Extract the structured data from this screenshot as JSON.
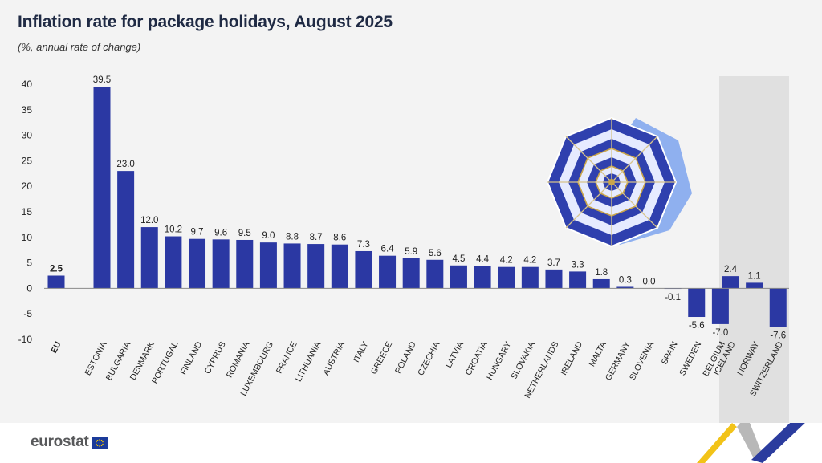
{
  "chart_data": {
    "type": "bar",
    "title": "Inflation rate for package holidays, August 2025",
    "subtitle": "(%, annual rate of change)",
    "ylim": [
      -10,
      40
    ],
    "yticks": [
      40,
      35,
      30,
      25,
      20,
      15,
      10,
      5,
      0,
      -5,
      -10
    ],
    "grid": false,
    "groups": [
      {
        "name": "eu",
        "categories": [
          "EU"
        ],
        "values": [
          2.5
        ],
        "labels": [
          "2.5"
        ],
        "shaded": false
      },
      {
        "name": "member-states",
        "categories": [
          "ESTONIA",
          "BULGARIA",
          "DENMARK",
          "PORTUGAL",
          "FINLAND",
          "CYPRUS",
          "ROMANIA",
          "LUXEMBOURG",
          "FRANCE",
          "LITHUANIA",
          "AUSTRIA",
          "ITALY",
          "GREECE",
          "POLAND",
          "CZECHIA",
          "LATVIA",
          "CROATIA",
          "HUNGARY",
          "SLOVAKIA",
          "NETHERLANDS",
          "IRELAND",
          "MALTA",
          "GERMANY",
          "SLOVENIA",
          "SPAIN",
          "SWEDEN",
          "BELGIUM"
        ],
        "values": [
          39.5,
          23.0,
          12.0,
          10.2,
          9.7,
          9.6,
          9.5,
          9.0,
          8.8,
          8.7,
          8.6,
          7.3,
          6.4,
          5.9,
          5.6,
          4.5,
          4.4,
          4.2,
          4.2,
          3.7,
          3.3,
          1.8,
          0.3,
          0.0,
          -0.1,
          -5.6,
          -7.0
        ],
        "labels": [
          "39.5",
          "23.0",
          "12.0",
          "10.2",
          "9.7",
          "9.6",
          "9.5",
          "9.0",
          "8.8",
          "8.7",
          "8.6",
          "7.3",
          "6.4",
          "5.9",
          "5.6",
          "4.5",
          "4.4",
          "4.2",
          "4.2",
          "3.7",
          "3.3",
          "1.8",
          "0.3",
          "0.0",
          "-0.1",
          "-5.6",
          "-7.0"
        ],
        "shaded": false
      },
      {
        "name": "efta",
        "categories": [
          "ICELAND",
          "NORWAY",
          "SWITZERLAND"
        ],
        "values": [
          2.4,
          1.1,
          -7.6
        ],
        "labels": [
          "2.4",
          "1.1",
          "-7.6"
        ],
        "shaded": true
      }
    ],
    "colors": {
      "bar": "#2b38a3",
      "panel": "#f3f3f3",
      "shade": "#e0e0e0",
      "axis": "#888888"
    }
  },
  "footer": {
    "logo_text": "eurostat"
  }
}
